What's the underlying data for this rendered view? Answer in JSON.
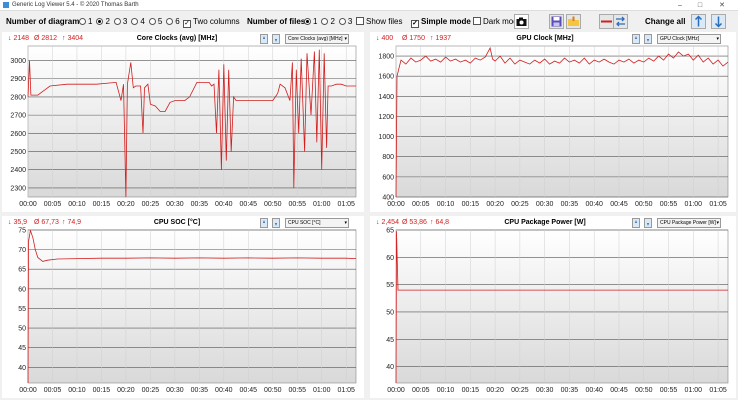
{
  "window": {
    "title": "Generic Log Viewer 5.4 - © 2020 Thomas Barth"
  },
  "toolbar": {
    "num_diagrams_label": "Number of diagrams",
    "diagram_options": [
      "1",
      "2",
      "3",
      "4",
      "5",
      "6"
    ],
    "diagram_selected": "2",
    "two_columns_label": "Two columns",
    "two_columns_checked": true,
    "num_files_label": "Number of files",
    "file_options": [
      "1",
      "2",
      "3"
    ],
    "file_selected": "1",
    "show_files_label": "Show files",
    "show_files_checked": false,
    "simple_mode_label": "Simple mode",
    "simple_mode_checked": true,
    "dark_mode_label": "Dark mode",
    "dark_mode_checked": false,
    "change_all_label": "Change all"
  },
  "x_ticks": [
    "00:00",
    "00:05",
    "00:10",
    "00:15",
    "00:20",
    "00:25",
    "00:30",
    "00:35",
    "00:40",
    "00:45",
    "00:50",
    "00:55",
    "01:00",
    "01:05"
  ],
  "chart_data": [
    {
      "type": "line",
      "title": "Core Clocks (avg) [MHz]",
      "select_value": "Core Clocks (avg) [MHz]",
      "stats": {
        "min": "↓ 2148",
        "avg": "Ø 2812",
        "max": "↑ 3404"
      },
      "ylim": [
        2250,
        3080
      ],
      "yticks": [
        "3000",
        "2900",
        "2800",
        "2700",
        "2600",
        "2500",
        "2400",
        "2300"
      ],
      "ytick_values": [
        3000,
        2900,
        2800,
        2700,
        2600,
        2500,
        2400,
        2300
      ],
      "xlim_minutes": [
        0,
        67
      ],
      "color": "#d21e1e",
      "series": [
        {
          "values": [
            [
              0,
              2800
            ],
            [
              0.3,
              3000
            ],
            [
              0.6,
              2810
            ],
            [
              2,
              2810
            ],
            [
              3.5,
              2840
            ],
            [
              4.5,
              2860
            ],
            [
              8,
              2870
            ],
            [
              11,
              2870
            ],
            [
              14,
              2870
            ],
            [
              18,
              2880
            ],
            [
              19,
              2780
            ],
            [
              19.5,
              2870
            ],
            [
              20,
              2250
            ],
            [
              20.3,
              2870
            ],
            [
              21,
              2990
            ],
            [
              21.5,
              2850
            ],
            [
              22,
              2860
            ],
            [
              23,
              2860
            ],
            [
              23.5,
              2600
            ],
            [
              23.8,
              2850
            ],
            [
              24.5,
              2870
            ],
            [
              25,
              2760
            ],
            [
              26,
              2750
            ],
            [
              27,
              2720
            ],
            [
              28,
              2720
            ],
            [
              29,
              2770
            ],
            [
              30,
              2780
            ],
            [
              32,
              2780
            ],
            [
              33,
              2800
            ],
            [
              34.5,
              2880
            ],
            [
              36,
              2880
            ],
            [
              37,
              2880
            ],
            [
              37.5,
              2860
            ],
            [
              38,
              2870
            ],
            [
              38.5,
              2600
            ],
            [
              39,
              2950
            ],
            [
              39.5,
              2400
            ],
            [
              40,
              2980
            ],
            [
              40.5,
              2450
            ],
            [
              41,
              2950
            ],
            [
              41.5,
              2500
            ],
            [
              42,
              2800
            ],
            [
              42.5,
              2780
            ],
            [
              44,
              2780
            ],
            [
              46,
              2780
            ],
            [
              48,
              2780
            ],
            [
              50,
              2780
            ],
            [
              51,
              2820
            ],
            [
              51.5,
              2870
            ],
            [
              52.5,
              2850
            ],
            [
              53.5,
              2780
            ],
            [
              54,
              2990
            ],
            [
              54.3,
              2300
            ],
            [
              54.8,
              2950
            ],
            [
              55.3,
              2600
            ],
            [
              55.8,
              3010
            ],
            [
              56.5,
              2500
            ],
            [
              57,
              3040
            ],
            [
              57.8,
              2700
            ],
            [
              58.5,
              3050
            ],
            [
              59,
              2550
            ],
            [
              59.5,
              3060
            ],
            [
              60,
              2400
            ],
            [
              60.5,
              3040
            ],
            [
              61,
              2520
            ],
            [
              61.3,
              2860
            ],
            [
              62,
              2860
            ],
            [
              63,
              2870
            ],
            [
              64,
              2870
            ],
            [
              65,
              2860
            ],
            [
              66,
              2860
            ],
            [
              67,
              2860
            ]
          ]
        }
      ]
    },
    {
      "type": "line",
      "title": "GPU Clock [MHz]",
      "select_value": "GPU Clock [MHz]",
      "stats": {
        "min": "↓ 400",
        "avg": "Ø 1750",
        "max": "↑ 1937"
      },
      "ylim": [
        400,
        1900
      ],
      "yticks": [
        "1800",
        "1600",
        "1400",
        "1200",
        "1000",
        "800",
        "600",
        "400"
      ],
      "ytick_values": [
        1800,
        1600,
        1400,
        1200,
        1000,
        800,
        600,
        400
      ],
      "xlim_minutes": [
        0,
        67
      ],
      "color": "#d21e1e",
      "series": [
        {
          "values": [
            [
              0,
              400
            ],
            [
              0.2,
              1600
            ],
            [
              0.6,
              1680
            ],
            [
              1,
              1760
            ],
            [
              2,
              1720
            ],
            [
              3,
              1780
            ],
            [
              4,
              1740
            ],
            [
              5,
              1760
            ],
            [
              6,
              1800
            ],
            [
              7,
              1750
            ],
            [
              8,
              1770
            ],
            [
              9,
              1740
            ],
            [
              10,
              1790
            ],
            [
              11,
              1750
            ],
            [
              12,
              1770
            ],
            [
              13,
              1740
            ],
            [
              14,
              1760
            ],
            [
              15,
              1730
            ],
            [
              16,
              1780
            ],
            [
              17,
              1760
            ],
            [
              18,
              1790
            ],
            [
              19,
              1880
            ],
            [
              19.5,
              1770
            ],
            [
              20,
              1750
            ],
            [
              21,
              1800
            ],
            [
              22,
              1730
            ],
            [
              23,
              1780
            ],
            [
              24,
              1720
            ],
            [
              25,
              1760
            ],
            [
              26,
              1740
            ],
            [
              27,
              1720
            ],
            [
              28,
              1760
            ],
            [
              29,
              1730
            ],
            [
              30,
              1770
            ],
            [
              31,
              1720
            ],
            [
              32,
              1750
            ],
            [
              33,
              1730
            ],
            [
              34,
              1780
            ],
            [
              35,
              1740
            ],
            [
              36,
              1760
            ],
            [
              37,
              1730
            ],
            [
              38,
              1780
            ],
            [
              39,
              1720
            ],
            [
              40,
              1760
            ],
            [
              41,
              1740
            ],
            [
              42,
              1770
            ],
            [
              43,
              1740
            ],
            [
              44,
              1720
            ],
            [
              45,
              1760
            ],
            [
              46,
              1740
            ],
            [
              47,
              1770
            ],
            [
              48,
              1730
            ],
            [
              49,
              1760
            ],
            [
              50,
              1740
            ],
            [
              51,
              1780
            ],
            [
              52,
              1750
            ],
            [
              53,
              1800
            ],
            [
              54,
              1760
            ],
            [
              55,
              1820
            ],
            [
              56,
              1780
            ],
            [
              57,
              1840
            ],
            [
              58,
              1800
            ],
            [
              59,
              1820
            ],
            [
              60,
              1760
            ],
            [
              61,
              1810
            ],
            [
              62,
              1740
            ],
            [
              63,
              1780
            ],
            [
              64,
              1720
            ],
            [
              65,
              1760
            ],
            [
              66,
              1700
            ],
            [
              67,
              1740
            ]
          ]
        }
      ]
    },
    {
      "type": "line",
      "title": "CPU SOC [°C]",
      "select_value": "CPU SOC [°C]",
      "stats": {
        "min": "↓ 35,9",
        "avg": "Ø 67,73",
        "max": "↑ 74,9"
      },
      "ylim": [
        36,
        75
      ],
      "yticks": [
        "75",
        "70",
        "65",
        "60",
        "55",
        "50",
        "45",
        "40"
      ],
      "ytick_values": [
        75,
        70,
        65,
        60,
        55,
        50,
        45,
        40
      ],
      "xlim_minutes": [
        0,
        67
      ],
      "color": "#d21e1e",
      "series": [
        {
          "values": [
            [
              0,
              36
            ],
            [
              0.1,
              72
            ],
            [
              0.5,
              74.9
            ],
            [
              1,
              73
            ],
            [
              1.5,
              70
            ],
            [
              2,
              68
            ],
            [
              3,
              67
            ],
            [
              4,
              67.3
            ],
            [
              6,
              67.6
            ],
            [
              10,
              67.7
            ],
            [
              15,
              67.8
            ],
            [
              20,
              67.8
            ],
            [
              25,
              67.9
            ],
            [
              30,
              67.8
            ],
            [
              35,
              67.9
            ],
            [
              40,
              67.8
            ],
            [
              45,
              67.9
            ],
            [
              50,
              67.8
            ],
            [
              55,
              67.9
            ],
            [
              60,
              67.8
            ],
            [
              65,
              67.8
            ],
            [
              67,
              67.7
            ]
          ]
        }
      ]
    },
    {
      "type": "line",
      "title": "CPU Package Power [W]",
      "select_value": "CPU Package Power [W]",
      "stats": {
        "min": "↓ 2,454",
        "avg": "Ø 53,86",
        "max": "↑ 64,8"
      },
      "ylim": [
        37,
        65
      ],
      "yticks": [
        "65",
        "60",
        "55",
        "50",
        "45",
        "40"
      ],
      "ytick_values": [
        65,
        60,
        55,
        50,
        45,
        40
      ],
      "xlim_minutes": [
        0,
        67
      ],
      "color": "#d21e1e",
      "series": [
        {
          "values": [
            [
              0,
              37
            ],
            [
              0.1,
              64.8
            ],
            [
              0.4,
              54
            ],
            [
              2,
              54
            ],
            [
              10,
              54
            ],
            [
              20,
              54
            ],
            [
              30,
              54
            ],
            [
              40,
              54
            ],
            [
              50,
              54
            ],
            [
              60,
              54
            ],
            [
              67,
              54
            ]
          ]
        }
      ]
    }
  ]
}
